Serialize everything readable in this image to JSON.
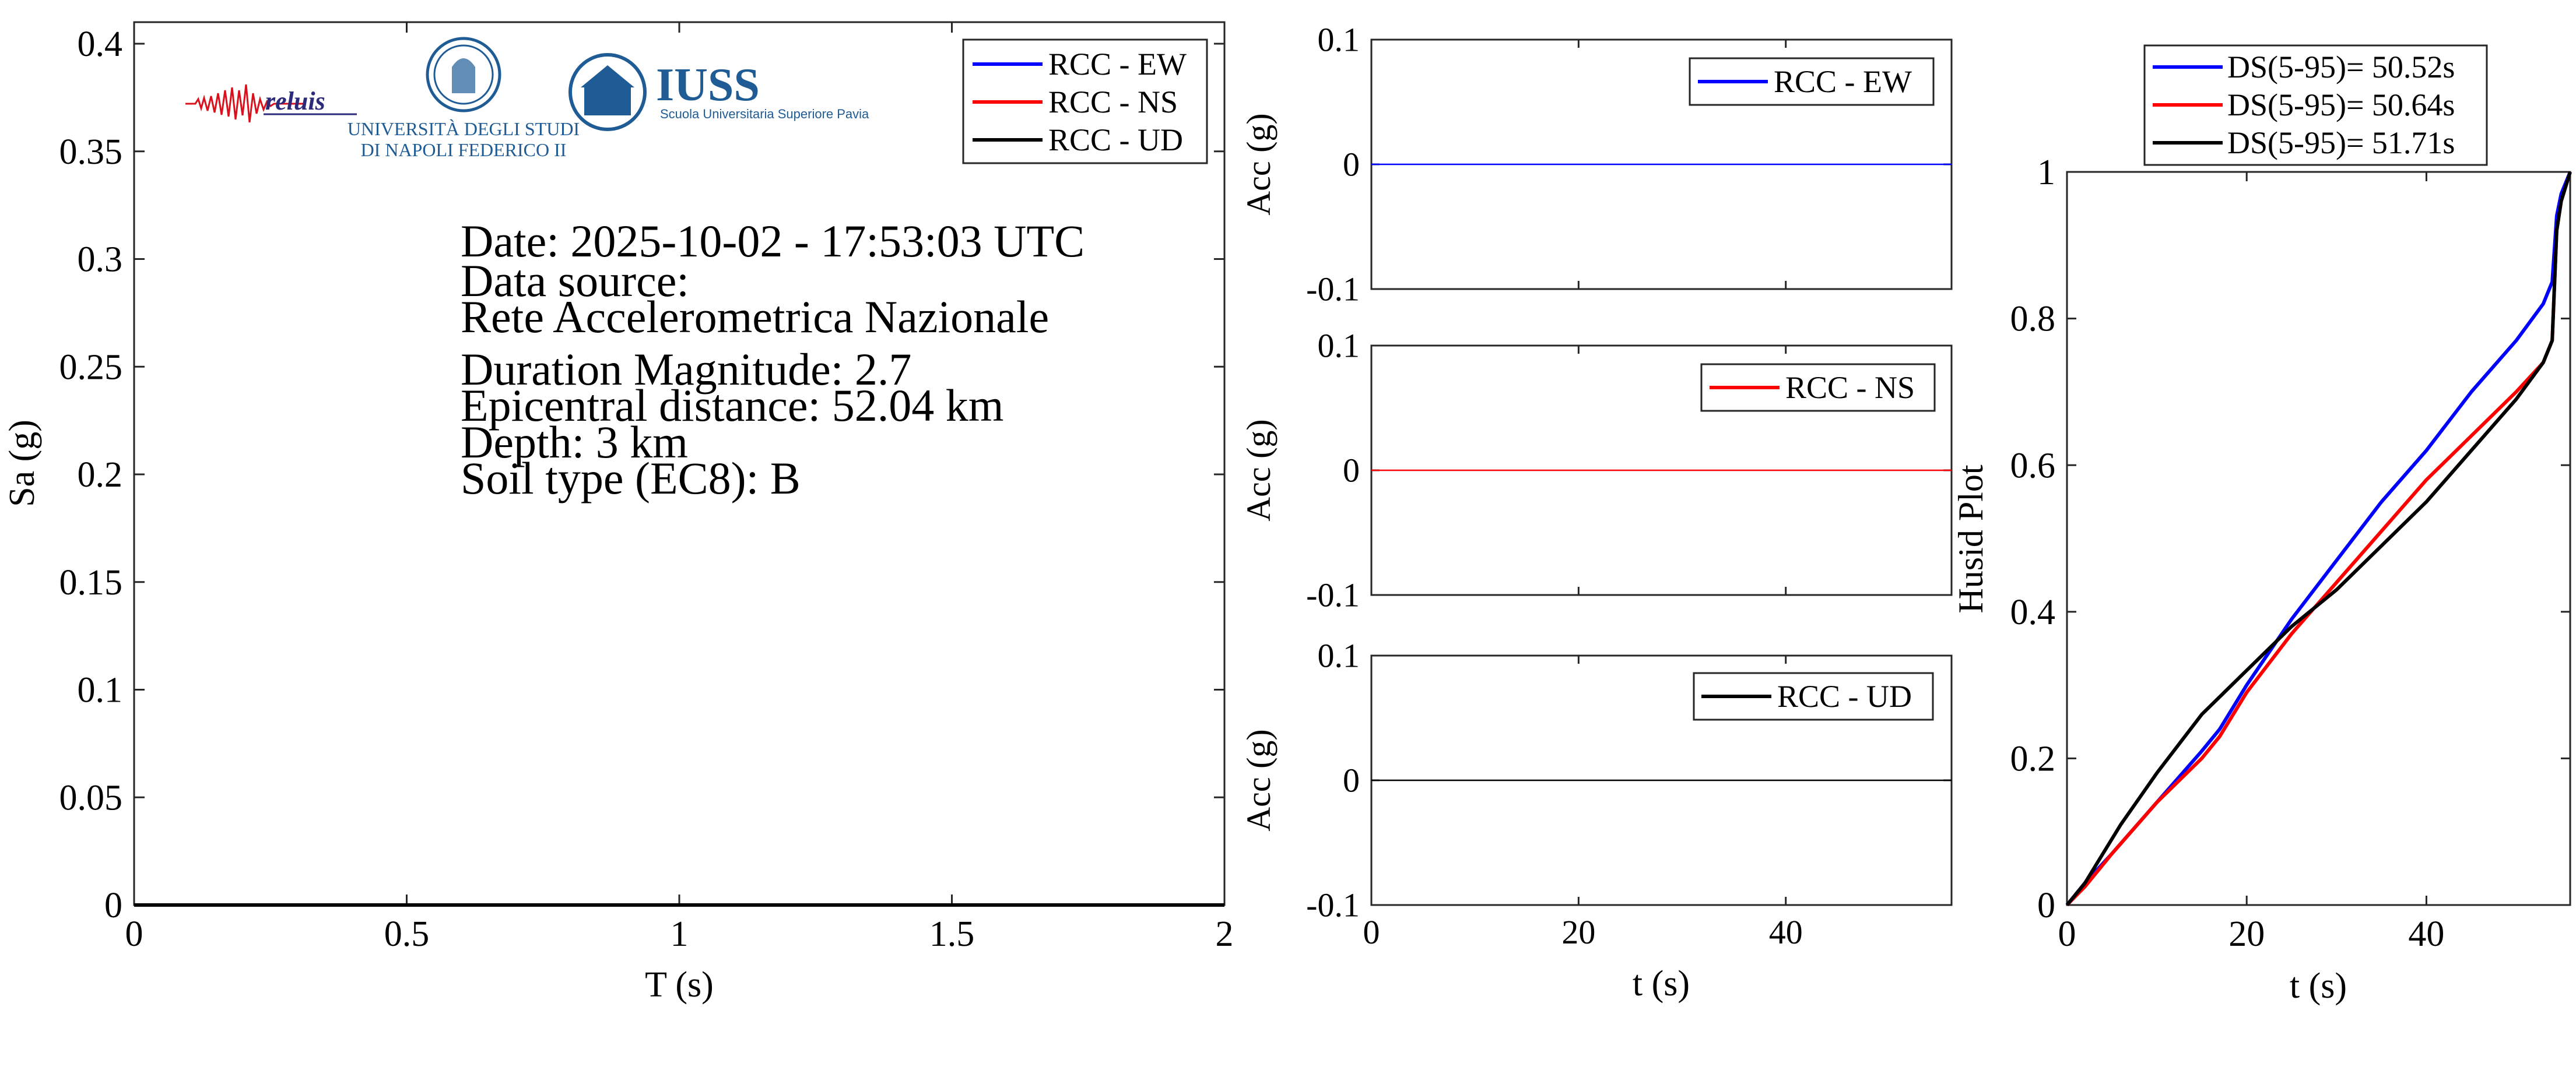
{
  "colors": {
    "ew": "#0000ff",
    "ns": "#ff0000",
    "ud": "#000000",
    "axis": "#262626",
    "logo_blue": "#1f5c96",
    "logo_red": "#d8111d",
    "logo_navy": "#2b2b7a"
  },
  "logos": {
    "reluis": "reluis",
    "unina_line1": "UNIVERSITÀ DEGLI STUDI",
    "unina_line2": "DI NAPOLI FEDERICO II",
    "iuss_name": "IUSS",
    "iuss_sub": "Scuola Universitaria Superiore Pavia"
  },
  "info": {
    "date": "Date: 2025-10-02 - 17:53:03 UTC",
    "source_label": "Data source:",
    "source_name": "Rete Accelerometrica Nazionale",
    "magnitude": "Duration Magnitude: 2.7",
    "distance": "Epicentral distance: 52.04 km",
    "depth": "Depth: 3 km",
    "soil": "Soil type (EC8): B"
  },
  "chart_data": [
    {
      "id": "spectrum",
      "type": "line",
      "xlabel": "T (s)",
      "ylabel": "Sa (g)",
      "xlim": [
        0,
        2
      ],
      "ylim": [
        0,
        0.41
      ],
      "xticks": [
        0,
        0.5,
        1,
        1.5,
        2
      ],
      "xtick_labels": [
        "0",
        "0.5",
        "1",
        "1.5",
        "2"
      ],
      "yticks": [
        0,
        0.05,
        0.1,
        0.15,
        0.2,
        0.25,
        0.3,
        0.35,
        0.4
      ],
      "ytick_labels": [
        "0",
        "0.05",
        "0.1",
        "0.15",
        "0.2",
        "0.25",
        "0.3",
        "0.35",
        "0.4"
      ],
      "legend_position": "top-right",
      "grid": false,
      "series": [
        {
          "name": "RCC - EW",
          "color": "#0000ff",
          "x": [
            0,
            0.5,
            1,
            1.5,
            2
          ],
          "y": [
            0,
            0,
            0,
            0,
            0
          ]
        },
        {
          "name": "RCC - NS",
          "color": "#ff0000",
          "x": [
            0,
            0.5,
            1,
            1.5,
            2
          ],
          "y": [
            0,
            0,
            0,
            0,
            0
          ]
        },
        {
          "name": "RCC - UD",
          "color": "#000000",
          "x": [
            0,
            0.5,
            1,
            1.5,
            2
          ],
          "y": [
            0,
            0,
            0,
            0,
            0
          ]
        }
      ]
    },
    {
      "id": "acc_ew",
      "type": "line",
      "xlabel": "",
      "ylabel": "Acc (g)",
      "xlim": [
        0,
        56
      ],
      "ylim": [
        -0.1,
        0.1
      ],
      "yticks": [
        -0.1,
        0,
        0.1
      ],
      "ytick_labels": [
        "-0.1",
        "0",
        "0.1"
      ],
      "xticks": [
        0,
        20,
        40
      ],
      "legend_position": "top-right",
      "series": [
        {
          "name": "RCC - EW",
          "color": "#0000ff",
          "x": [
            0,
            56
          ],
          "y": [
            0,
            0
          ]
        }
      ]
    },
    {
      "id": "acc_ns",
      "type": "line",
      "xlabel": "",
      "ylabel": "Acc (g)",
      "xlim": [
        0,
        56
      ],
      "ylim": [
        -0.1,
        0.1
      ],
      "yticks": [
        -0.1,
        0,
        0.1
      ],
      "ytick_labels": [
        "-0.1",
        "0",
        "0.1"
      ],
      "xticks": [
        0,
        20,
        40
      ],
      "legend_position": "top-right",
      "series": [
        {
          "name": "RCC - NS",
          "color": "#ff0000",
          "x": [
            0,
            56
          ],
          "y": [
            0,
            0
          ]
        }
      ]
    },
    {
      "id": "acc_ud",
      "type": "line",
      "xlabel": "t (s)",
      "ylabel": "Acc (g)",
      "xlim": [
        0,
        56
      ],
      "ylim": [
        -0.1,
        0.1
      ],
      "yticks": [
        -0.1,
        0,
        0.1
      ],
      "ytick_labels": [
        "-0.1",
        "0",
        "0.1"
      ],
      "xticks": [
        0,
        20,
        40
      ],
      "xtick_labels": [
        "0",
        "20",
        "40"
      ],
      "legend_position": "top-right",
      "series": [
        {
          "name": "RCC - UD",
          "color": "#000000",
          "x": [
            0,
            56
          ],
          "y": [
            0,
            0
          ]
        }
      ]
    },
    {
      "id": "husid",
      "type": "line",
      "xlabel": "t (s)",
      "ylabel": "Husid Plot",
      "xlim": [
        0,
        56
      ],
      "ylim": [
        0,
        1
      ],
      "xticks": [
        0,
        20,
        40
      ],
      "xtick_labels": [
        "0",
        "20",
        "40"
      ],
      "yticks": [
        0,
        0.2,
        0.4,
        0.6,
        0.8,
        1
      ],
      "ytick_labels": [
        "0",
        "0.2",
        "0.4",
        "0.6",
        "0.8",
        "1"
      ],
      "legend_position": "top (above axes)",
      "series": [
        {
          "name": "DS(5-95)= 50.52s",
          "color": "#0000ff",
          "x": [
            0,
            2,
            5,
            10,
            15,
            17,
            20,
            25,
            30,
            35,
            40,
            45,
            50,
            53,
            54,
            54.5,
            55,
            56
          ],
          "y": [
            0,
            0.03,
            0.07,
            0.14,
            0.21,
            0.24,
            0.3,
            0.39,
            0.47,
            0.55,
            0.62,
            0.7,
            0.77,
            0.82,
            0.85,
            0.94,
            0.97,
            1.0
          ]
        },
        {
          "name": "DS(5-95)= 50.64s",
          "color": "#ff0000",
          "x": [
            0,
            2,
            5,
            10,
            15,
            17,
            20,
            25,
            30,
            35,
            40,
            45,
            50,
            53,
            54,
            54.5,
            55,
            56
          ],
          "y": [
            0,
            0.025,
            0.07,
            0.14,
            0.2,
            0.23,
            0.29,
            0.37,
            0.44,
            0.51,
            0.58,
            0.64,
            0.7,
            0.74,
            0.77,
            0.92,
            0.96,
            1.0
          ]
        },
        {
          "name": "DS(5-95)= 51.71s",
          "color": "#000000",
          "x": [
            0,
            2,
            4,
            6,
            10,
            15,
            20,
            25,
            30,
            35,
            40,
            45,
            50,
            53,
            54,
            54.5,
            55,
            56
          ],
          "y": [
            0,
            0.03,
            0.07,
            0.11,
            0.18,
            0.26,
            0.32,
            0.38,
            0.43,
            0.49,
            0.55,
            0.62,
            0.69,
            0.74,
            0.77,
            0.92,
            0.96,
            1.0
          ]
        }
      ]
    }
  ]
}
